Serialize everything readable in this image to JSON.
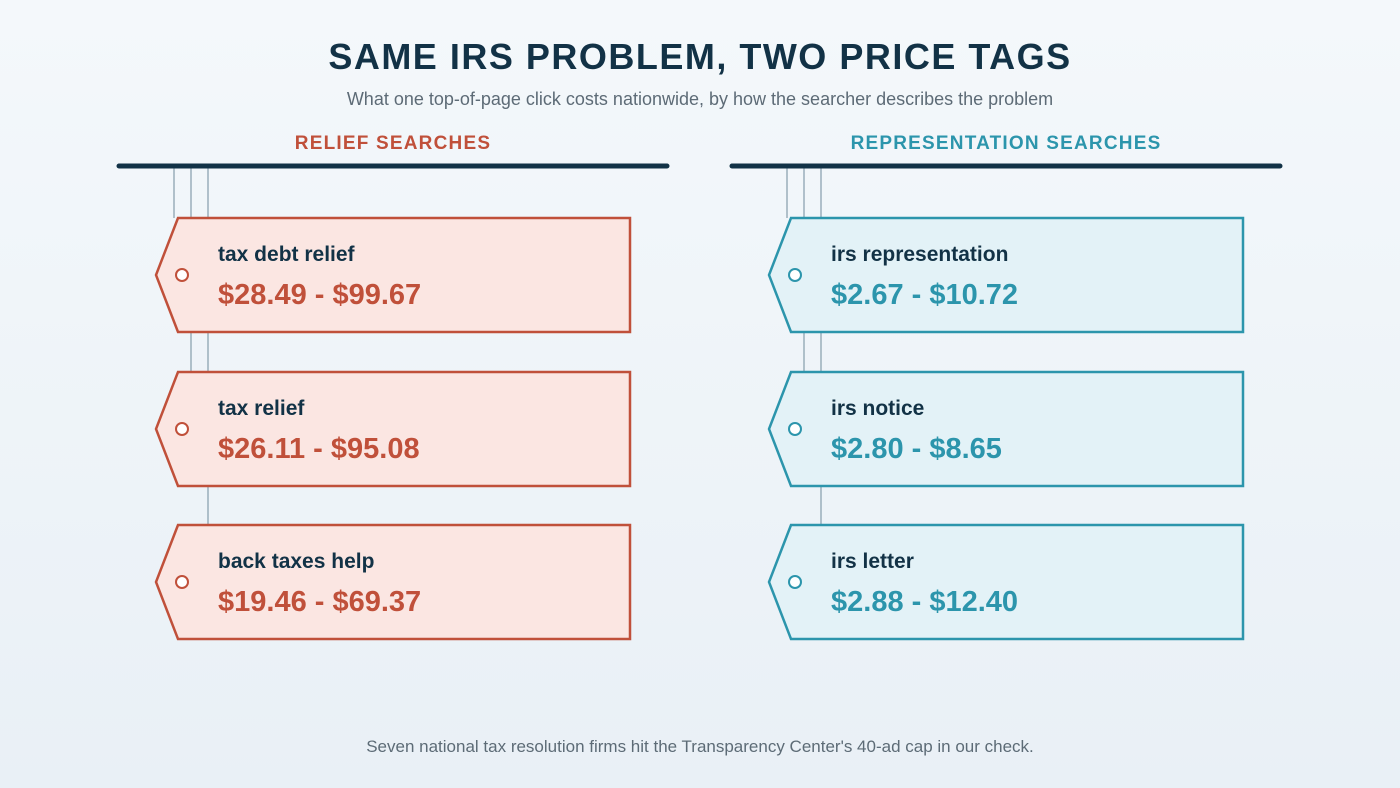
{
  "title": "SAME IRS PROBLEM, TWO PRICE TAGS",
  "subtitle": "What one top-of-page click costs nationwide, by how the searcher describes the problem",
  "footer": "Seven national tax resolution firms hit the Transparency Center's 40-ad cap in our check.",
  "colors": {
    "relief": "#c0503a",
    "relief_fill": "#fbe6e2",
    "representation": "#2c95ac",
    "representation_fill": "#e3f2f7",
    "bar": "#123246",
    "string": "#9aaebb"
  },
  "groups": [
    {
      "heading": "RELIEF SEARCHES",
      "theme": "relief",
      "tags": [
        {
          "label": "tax debt relief",
          "range": "$28.49 - $99.67"
        },
        {
          "label": "tax relief",
          "range": "$26.11 - $95.08"
        },
        {
          "label": "back taxes help",
          "range": "$19.46 - $69.37"
        }
      ]
    },
    {
      "heading": "REPRESENTATION SEARCHES",
      "theme": "representation",
      "tags": [
        {
          "label": "irs representation",
          "range": "$2.67 - $10.72"
        },
        {
          "label": "irs notice",
          "range": "$2.80 - $8.65"
        },
        {
          "label": "irs letter",
          "range": "$2.88 - $12.40"
        }
      ]
    }
  ]
}
